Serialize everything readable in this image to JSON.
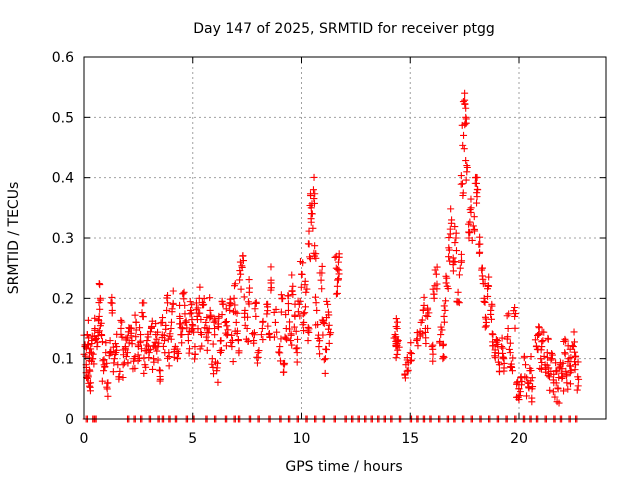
{
  "chart_data": {
    "type": "scatter",
    "title": "Day 147 of 2025, SRMTID for receiver ptgg",
    "xlabel": "GPS time / hours",
    "ylabel": "SRMTID / TECUs",
    "xlim": [
      0,
      24
    ],
    "ylim": [
      0,
      0.6
    ],
    "x_ticks": [
      0,
      5,
      10,
      15,
      20
    ],
    "x_tick_labels": [
      "0",
      "5",
      "10",
      "15",
      "20"
    ],
    "y_ticks": [
      0,
      0.1,
      0.2,
      0.3,
      0.4,
      0.5,
      0.6
    ],
    "y_tick_labels": [
      "0",
      "0.1",
      "0.2",
      "0.3",
      "0.4",
      "0.5",
      "0.6"
    ],
    "grid": true,
    "marker": "plus",
    "color": "#ff0000",
    "series": [
      {
        "name": "SRMTID",
        "points": [
          [
            0.05,
            0.12
          ],
          [
            0.1,
            0.09
          ],
          [
            0.15,
            0.14
          ],
          [
            0.2,
            0.07
          ],
          [
            0.25,
            0.11
          ],
          [
            0.3,
            0.06
          ],
          [
            0.35,
            0.13
          ],
          [
            0.4,
            0.1
          ],
          [
            0.5,
            0.15
          ],
          [
            0.6,
            0.12
          ],
          [
            0.7,
            0.17
          ],
          [
            0.75,
            0.2
          ],
          [
            0.8,
            0.14
          ],
          [
            0.9,
            0.08
          ],
          [
            1.0,
            0.11
          ],
          [
            1.1,
            0.06
          ],
          [
            1.2,
            0.13
          ],
          [
            1.3,
            0.18
          ],
          [
            1.4,
            0.1
          ],
          [
            1.5,
            0.12
          ],
          [
            1.6,
            0.07
          ],
          [
            1.7,
            0.14
          ],
          [
            1.8,
            0.09
          ],
          [
            1.9,
            0.12
          ],
          [
            2.0,
            0.11
          ],
          [
            2.1,
            0.15
          ],
          [
            2.2,
            0.13
          ],
          [
            2.3,
            0.1
          ],
          [
            2.4,
            0.16
          ],
          [
            2.5,
            0.12
          ],
          [
            2.6,
            0.14
          ],
          [
            2.7,
            0.17
          ],
          [
            2.8,
            0.09
          ],
          [
            2.9,
            0.13
          ],
          [
            3.0,
            0.11
          ],
          [
            3.1,
            0.15
          ],
          [
            3.2,
            0.1
          ],
          [
            3.3,
            0.14
          ],
          [
            3.4,
            0.12
          ],
          [
            3.5,
            0.08
          ],
          [
            3.6,
            0.16
          ],
          [
            3.7,
            0.13
          ],
          [
            3.8,
            0.18
          ],
          [
            3.9,
            0.11
          ],
          [
            4.0,
            0.15
          ],
          [
            4.1,
            0.19
          ],
          [
            4.2,
            0.12
          ],
          [
            4.3,
            0.1
          ],
          [
            4.4,
            0.17
          ],
          [
            4.5,
            0.14
          ],
          [
            4.6,
            0.21
          ],
          [
            4.7,
            0.16
          ],
          [
            4.8,
            0.13
          ],
          [
            4.9,
            0.18
          ],
          [
            5.0,
            0.15
          ],
          [
            5.1,
            0.12
          ],
          [
            5.2,
            0.17
          ],
          [
            5.3,
            0.2
          ],
          [
            5.4,
            0.14
          ],
          [
            5.5,
            0.19
          ],
          [
            5.6,
            0.16
          ],
          [
            5.7,
            0.13
          ],
          [
            5.8,
            0.18
          ],
          [
            5.9,
            0.1
          ],
          [
            6.0,
            0.15
          ],
          [
            6.1,
            0.08
          ],
          [
            6.2,
            0.17
          ],
          [
            6.3,
            0.13
          ],
          [
            6.4,
            0.19
          ],
          [
            6.5,
            0.16
          ],
          [
            6.6,
            0.14
          ],
          [
            6.7,
            0.18
          ],
          [
            6.8,
            0.12
          ],
          [
            6.9,
            0.2
          ],
          [
            7.0,
            0.16
          ],
          [
            7.1,
            0.13
          ],
          [
            7.2,
            0.24
          ],
          [
            7.3,
            0.27
          ],
          [
            7.4,
            0.18
          ],
          [
            7.5,
            0.15
          ],
          [
            7.6,
            0.21
          ],
          [
            7.8,
            0.13
          ],
          [
            7.9,
            0.17
          ],
          [
            8.0,
            0.11
          ],
          [
            8.2,
            0.15
          ],
          [
            8.4,
            0.19
          ],
          [
            8.5,
            0.14
          ],
          [
            8.6,
            0.23
          ],
          [
            8.8,
            0.16
          ],
          [
            9.0,
            0.12
          ],
          [
            9.1,
            0.2
          ],
          [
            9.2,
            0.09
          ],
          [
            9.3,
            0.15
          ],
          [
            9.4,
            0.18
          ],
          [
            9.5,
            0.13
          ],
          [
            9.6,
            0.22
          ],
          [
            9.7,
            0.17
          ],
          [
            9.8,
            0.11
          ],
          [
            9.9,
            0.19
          ],
          [
            10.0,
            0.24
          ],
          [
            10.1,
            0.16
          ],
          [
            10.2,
            0.21
          ],
          [
            10.3,
            0.13
          ],
          [
            10.35,
            0.29
          ],
          [
            10.45,
            0.35
          ],
          [
            10.5,
            0.34
          ],
          [
            10.55,
            0.38
          ],
          [
            10.6,
            0.27
          ],
          [
            10.7,
            0.18
          ],
          [
            10.8,
            0.12
          ],
          [
            10.9,
            0.23
          ],
          [
            11.0,
            0.16
          ],
          [
            11.1,
            0.1
          ],
          [
            11.2,
            0.19
          ],
          [
            11.3,
            0.14
          ],
          [
            11.6,
            0.25
          ],
          [
            11.65,
            0.22
          ],
          [
            11.7,
            0.26
          ],
          [
            14.3,
            0.14
          ],
          [
            14.35,
            0.12
          ],
          [
            14.4,
            0.15
          ],
          [
            14.45,
            0.13
          ],
          [
            14.8,
            0.09
          ],
          [
            14.9,
            0.08
          ],
          [
            15.0,
            0.11
          ],
          [
            15.3,
            0.13
          ],
          [
            15.5,
            0.16
          ],
          [
            15.6,
            0.18
          ],
          [
            15.7,
            0.15
          ],
          [
            15.8,
            0.17
          ],
          [
            16.0,
            0.12
          ],
          [
            16.1,
            0.2
          ],
          [
            16.2,
            0.24
          ],
          [
            16.4,
            0.14
          ],
          [
            16.5,
            0.1
          ],
          [
            16.6,
            0.18
          ],
          [
            16.7,
            0.22
          ],
          [
            16.8,
            0.28
          ],
          [
            16.9,
            0.33
          ],
          [
            17.0,
            0.26
          ],
          [
            17.1,
            0.3
          ],
          [
            17.2,
            0.21
          ],
          [
            17.3,
            0.25
          ],
          [
            17.4,
            0.39
          ],
          [
            17.45,
            0.47
          ],
          [
            17.5,
            0.54
          ],
          [
            17.55,
            0.5
          ],
          [
            17.6,
            0.42
          ],
          [
            17.7,
            0.3
          ],
          [
            17.8,
            0.35
          ],
          [
            17.9,
            0.32
          ],
          [
            18.0,
            0.4
          ],
          [
            18.1,
            0.38
          ],
          [
            18.2,
            0.29
          ],
          [
            18.3,
            0.25
          ],
          [
            18.4,
            0.2
          ],
          [
            18.5,
            0.16
          ],
          [
            18.6,
            0.22
          ],
          [
            18.7,
            0.18
          ],
          [
            18.8,
            0.14
          ],
          [
            18.9,
            0.11
          ],
          [
            19.0,
            0.13
          ],
          [
            19.1,
            0.09
          ],
          [
            19.2,
            0.12
          ],
          [
            19.3,
            0.1
          ],
          [
            19.5,
            0.15
          ],
          [
            19.6,
            0.11
          ],
          [
            19.7,
            0.08
          ],
          [
            19.8,
            0.17
          ],
          [
            19.9,
            0.06
          ],
          [
            20.0,
            0.05
          ],
          [
            20.1,
            0.07
          ],
          [
            20.3,
            0.09
          ],
          [
            20.4,
            0.06
          ],
          [
            20.5,
            0.08
          ],
          [
            20.6,
            0.05
          ],
          [
            20.8,
            0.12
          ],
          [
            20.9,
            0.14
          ],
          [
            21.0,
            0.1
          ],
          [
            21.1,
            0.13
          ],
          [
            21.2,
            0.09
          ],
          [
            21.3,
            0.11
          ],
          [
            21.4,
            0.07
          ],
          [
            21.5,
            0.1
          ],
          [
            21.6,
            0.06
          ],
          [
            21.7,
            0.08
          ],
          [
            21.8,
            0.05
          ],
          [
            21.9,
            0.09
          ],
          [
            22.0,
            0.07
          ],
          [
            22.1,
            0.11
          ],
          [
            22.2,
            0.06
          ],
          [
            22.3,
            0.1
          ],
          [
            22.4,
            0.08
          ],
          [
            22.5,
            0.12
          ],
          [
            22.6,
            0.09
          ],
          [
            22.7,
            0.07
          ]
        ],
        "zero_hours": [
          0.1,
          0.4,
          0.5,
          2.0,
          2.3,
          2.6,
          3.0,
          3.4,
          3.6,
          3.9,
          4.2,
          4.7,
          5.0,
          5.6,
          6.0,
          6.5,
          6.9,
          7.1,
          7.6,
          8.0,
          8.5,
          9.0,
          9.4,
          9.8,
          10.2,
          10.6,
          11.0,
          11.5,
          12.0,
          12.3,
          12.6,
          12.9,
          13.2,
          13.5,
          13.8,
          14.1,
          14.5,
          15.0,
          15.3,
          15.6,
          15.9,
          16.3,
          16.7,
          17.0,
          17.4,
          17.8,
          18.2,
          18.6,
          19.0,
          19.4,
          19.8,
          20.2,
          20.5,
          20.8,
          21.2,
          21.6,
          21.9,
          22.3,
          22.6
        ]
      }
    ]
  }
}
